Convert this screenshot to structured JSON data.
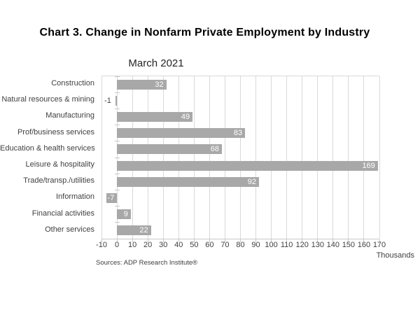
{
  "header": {
    "title": "Chart 3. Change in Nonfarm Private Employment by Industry",
    "subtitle": "March 2021"
  },
  "footer": {
    "source": "Sources: ADP Research Institute®",
    "axis_unit_label": "Thousands"
  },
  "chart_data": {
    "type": "bar",
    "orientation": "horizontal",
    "title": "Chart 3. Change in Nonfarm Private Employment by Industry",
    "subtitle": "March 2021",
    "categories": [
      "Construction",
      "Natural resources & mining",
      "Manufacturing",
      "Prof/business services",
      "Education & health services",
      "Leisure & hospitality",
      "Trade/transp./utilities",
      "Information",
      "Financial activities",
      "Other services"
    ],
    "values": [
      32,
      -1,
      49,
      83,
      68,
      169,
      92,
      -7,
      9,
      22
    ],
    "xlabel": "Thousands",
    "ylabel": "",
    "xlim": [
      -10,
      170
    ],
    "xticks": [
      -10,
      0,
      10,
      20,
      30,
      40,
      50,
      60,
      70,
      80,
      90,
      100,
      110,
      120,
      130,
      140,
      150,
      160,
      170
    ],
    "grid": true,
    "legend": false,
    "colors": {
      "bar": "#a8a8a8",
      "gridline": "#d9d9d9",
      "axis_line": "#c9c9c9",
      "value_label_inside": "#ffffff",
      "value_label_outside": "#3f3f3f",
      "axis_text": "#3f3f3f"
    }
  }
}
